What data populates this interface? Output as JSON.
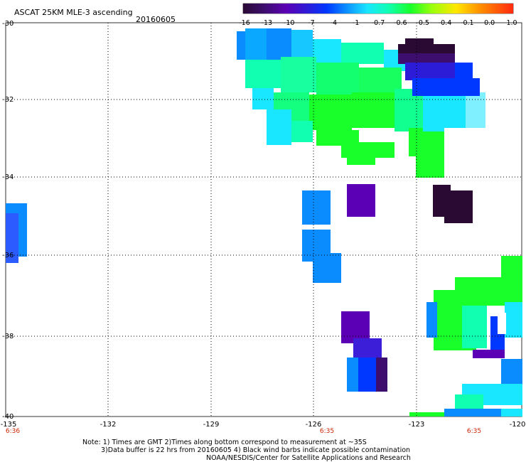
{
  "header": {
    "title": "ASCAT 25KM MLE-3 ascending",
    "date": "20160605"
  },
  "colorbar": {
    "labels": [
      "-16",
      "-13",
      "-10",
      "-7",
      "-4",
      "-1",
      "-0.7",
      "-0.6",
      "-0.5",
      "-0.4",
      "-0.1",
      "0.0",
      "1.0"
    ],
    "colors": [
      "#2a0a33",
      "#3d0e6e",
      "#5b00b5",
      "#2c1cd8",
      "#0038ff",
      "#0a8cff",
      "#19e6ff",
      "#10ffb0",
      "#18ff2a",
      "#9cff0c",
      "#ffe600",
      "#ff8c00",
      "#ff2a10"
    ]
  },
  "axes": {
    "y_labels": [
      "-30",
      "-32",
      "-34",
      "-36",
      "-38",
      "-40"
    ],
    "x_labels": [
      "-135",
      "-132",
      "-129",
      "-126",
      "-123",
      "-120"
    ]
  },
  "times": [
    "6:36",
    "6:35",
    "6:35"
  ],
  "notes": {
    "line1": "Note: 1) Times are GMT 2)Times along bottom correspond to measurement at ~35S",
    "line2": "3)Data buffer is 22 hrs from 20160605 4) Black wind barbs indicate possible contamination",
    "line3": "NOAA/NESDIS/Center for Satellite Applications and Research"
  }
}
